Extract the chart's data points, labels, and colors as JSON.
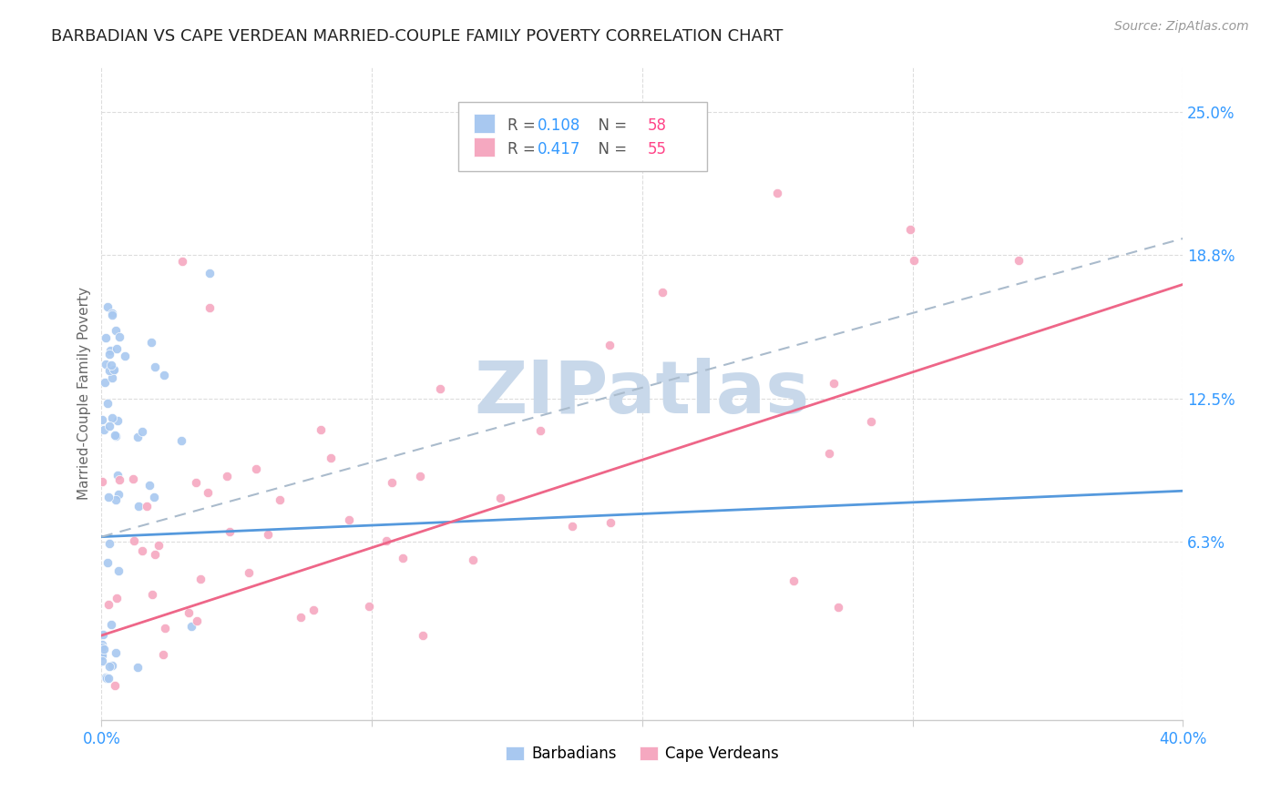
{
  "title": "BARBADIAN VS CAPE VERDEAN MARRIED-COUPLE FAMILY POVERTY CORRELATION CHART",
  "source": "Source: ZipAtlas.com",
  "ylabel": "Married-Couple Family Poverty",
  "xrange": [
    0.0,
    0.4
  ],
  "yrange": [
    -0.015,
    0.27
  ],
  "barbadian_color": "#a8c8f0",
  "cape_verdean_color": "#f5a8c0",
  "barbadian_line_color": "#5599dd",
  "cape_verdean_line_color": "#ee6688",
  "barbadian_dash_color": "#aabbdd",
  "watermark": "ZIPatlas",
  "watermark_color": "#c8d8ea",
  "background_color": "#ffffff",
  "legend_r1_val": "0.108",
  "legend_n1_val": "58",
  "legend_r2_val": "0.417",
  "legend_n2_val": "55",
  "legend_r_color": "#3399ff",
  "legend_n_color": "#ff4488",
  "ytick_vals": [
    0.063,
    0.125,
    0.188,
    0.25
  ],
  "ytick_labels": [
    "6.3%",
    "12.5%",
    "18.8%",
    "25.0%"
  ],
  "ytick_color": "#3399ff",
  "xtick_color": "#3399ff",
  "grid_color": "#dddddd",
  "spine_color": "#cccccc"
}
